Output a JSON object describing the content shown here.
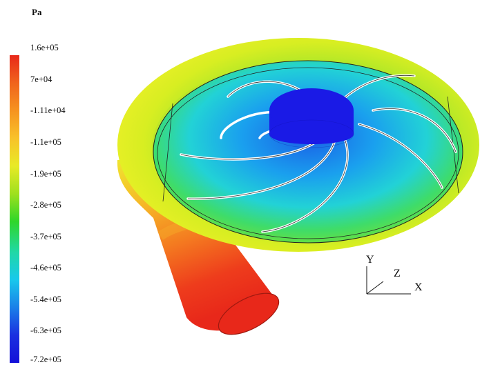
{
  "legend": {
    "unit": "Pa",
    "ticks": [
      "1.6e+05",
      "7e+04",
      "-1.11e+04",
      "-1.1e+05",
      "-1.9e+05",
      "-2.8e+05",
      "-3.7e+05",
      "-4.6e+05",
      "-5.4e+05",
      "-6.3e+05",
      "-7.2e+05"
    ],
    "colors": [
      "#e8281a",
      "#f0641c",
      "#f69320",
      "#f8c22a",
      "#e8ea26",
      "#9fe01e",
      "#2fd62a",
      "#20d8a6",
      "#18c8ec",
      "#1a80e8",
      "#1a30e0",
      "#1410d8"
    ]
  },
  "axes": {
    "y": "Y",
    "z": "Z",
    "x": "X"
  },
  "scene": {
    "description_colors": {
      "impeller_hub": "#1a1ae6",
      "blade": "#ffffff",
      "outer_ring": "#d8ec20",
      "outlet": "#f04820"
    }
  }
}
